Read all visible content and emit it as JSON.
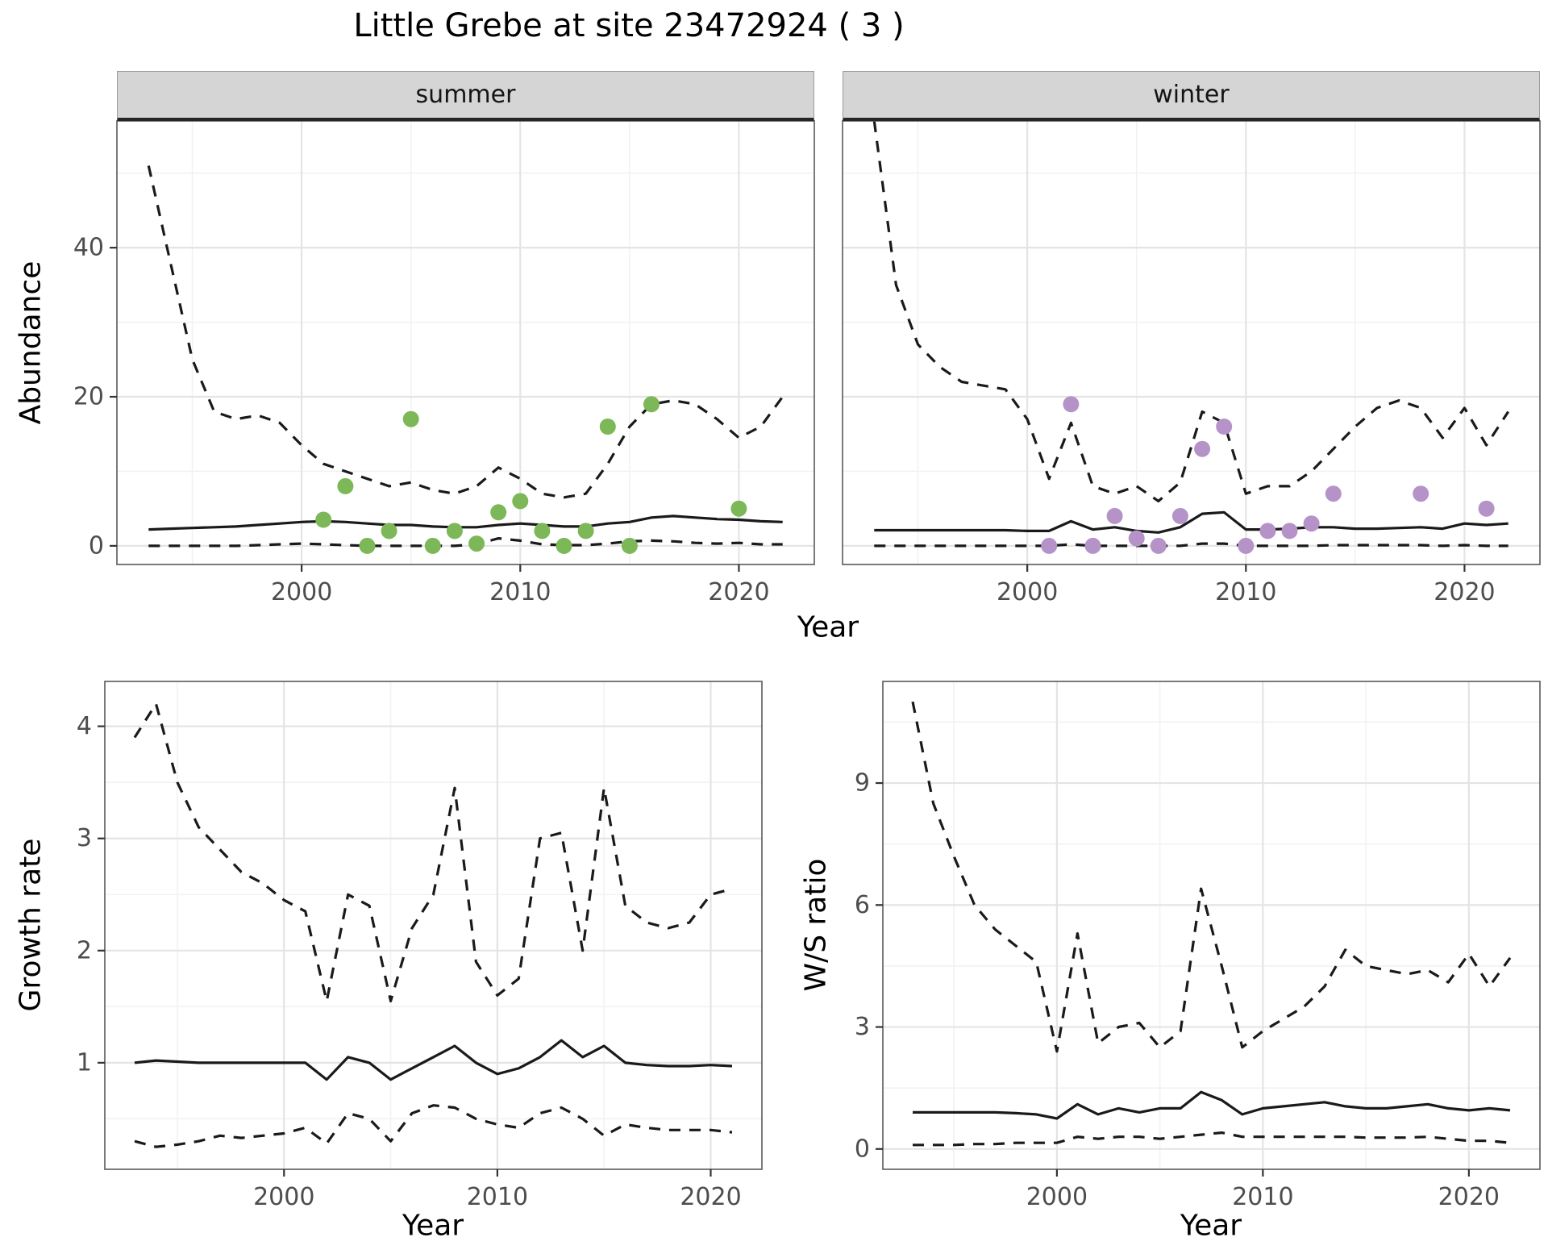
{
  "title": "Little Grebe at site 23472924 ( 3 )",
  "facets": [
    {
      "label": "summer"
    },
    {
      "label": "winter"
    }
  ],
  "axis_labels": {
    "abundance": "Abundance",
    "year": "Year",
    "growth_rate": "Growth rate",
    "ws_ratio": "W/S ratio"
  },
  "colors": {
    "summer_points": "#7cb857",
    "winter_points": "#b593c8",
    "line": "#1a1a1a",
    "strip_bg": "#d5d5d5",
    "grid_major": "#e4e4e4",
    "grid_minor": "#f2f2f2",
    "panel_border": "#595959",
    "tick_text": "#4d4d4d",
    "tick_mark": "#333333"
  },
  "chart_data": [
    {
      "id": "abundance_summer",
      "type": "line",
      "panel": "summer",
      "facet_label": "summer",
      "xlabel": "Year",
      "ylabel": "Abundance",
      "xlim": [
        1991.55,
        2023.45
      ],
      "ylim": [
        -2.5,
        57
      ],
      "xticks": [
        2000,
        2010,
        2020
      ],
      "xminor": [
        1995,
        2005,
        2015
      ],
      "yticks": [
        0,
        20,
        40
      ],
      "yminor": [
        10,
        30,
        50
      ],
      "x": [
        1993,
        1994,
        1995,
        1996,
        1997,
        1998,
        1999,
        2000,
        2001,
        2002,
        2003,
        2004,
        2005,
        2006,
        2007,
        2008,
        2009,
        2010,
        2011,
        2012,
        2013,
        2014,
        2015,
        2016,
        2017,
        2018,
        2019,
        2020,
        2021,
        2022
      ],
      "series": [
        {
          "name": "upper_ci",
          "style": "dashed",
          "y": [
            51,
            38,
            25,
            18,
            17,
            17.5,
            16.5,
            13.5,
            11,
            10,
            9,
            8,
            8.5,
            7.5,
            7,
            8,
            10.5,
            9,
            7,
            6.5,
            7,
            11,
            16,
            19,
            19.5,
            19,
            17,
            14.5,
            16,
            20
          ]
        },
        {
          "name": "median",
          "style": "solid",
          "y": [
            2.2,
            2.3,
            2.4,
            2.5,
            2.6,
            2.8,
            3,
            3.2,
            3.3,
            3.2,
            3,
            2.8,
            2.8,
            2.6,
            2.5,
            2.5,
            2.8,
            3,
            2.8,
            2.6,
            2.6,
            3,
            3.2,
            3.8,
            4,
            3.8,
            3.6,
            3.5,
            3.3,
            3.2
          ]
        },
        {
          "name": "lower_ci",
          "style": "dashed",
          "y": [
            0,
            0,
            0,
            0,
            0,
            0.1,
            0.2,
            0.3,
            0.2,
            0.1,
            0,
            0,
            0,
            0,
            0,
            0.2,
            1,
            0.7,
            0.2,
            0.1,
            0.1,
            0.3,
            0.6,
            0.7,
            0.6,
            0.4,
            0.3,
            0.4,
            0.2,
            0.2
          ]
        }
      ],
      "points": {
        "x": [
          2001,
          2002,
          2003,
          2004,
          2005,
          2006,
          2007,
          2008,
          2009,
          2010,
          2011,
          2012,
          2013,
          2014,
          2015,
          2016,
          2020
        ],
        "y": [
          3.5,
          8,
          0,
          2,
          17,
          0,
          2,
          0.3,
          4.5,
          6,
          2,
          0,
          2,
          16,
          0,
          19,
          5
        ],
        "color": "#7cb857"
      }
    },
    {
      "id": "abundance_winter",
      "type": "line",
      "panel": "winter",
      "facet_label": "winter",
      "xlabel": "Year",
      "ylabel": "Abundance",
      "xlim": [
        1991.55,
        2023.45
      ],
      "ylim": [
        -2.5,
        57
      ],
      "xticks": [
        2000,
        2010,
        2020
      ],
      "xminor": [
        1995,
        2005,
        2015
      ],
      "yticks": [
        0,
        20,
        40
      ],
      "yminor": [
        10,
        30,
        50
      ],
      "x": [
        1993,
        1994,
        1995,
        1996,
        1997,
        1998,
        1999,
        2000,
        2001,
        2002,
        2003,
        2004,
        2005,
        2006,
        2007,
        2008,
        2009,
        2010,
        2011,
        2012,
        2013,
        2014,
        2015,
        2016,
        2017,
        2018,
        2019,
        2020,
        2021,
        2022
      ],
      "series": [
        {
          "name": "upper_ci",
          "style": "dashed",
          "y": [
            57,
            35,
            27,
            24,
            22,
            21.5,
            21,
            17,
            9,
            16.5,
            8,
            7,
            8,
            6,
            8.5,
            18,
            16.5,
            7,
            8,
            8,
            10,
            13,
            16,
            18.5,
            19.5,
            18.5,
            14.5,
            18.5,
            13.5,
            18
          ]
        },
        {
          "name": "median",
          "style": "solid",
          "y": [
            2.1,
            2.1,
            2.1,
            2.1,
            2.1,
            2.1,
            2.1,
            2,
            2,
            3.3,
            2.2,
            2.5,
            2,
            1.8,
            2.5,
            4.3,
            4.5,
            2.2,
            2.2,
            2.3,
            2.5,
            2.5,
            2.3,
            2.3,
            2.4,
            2.5,
            2.3,
            3,
            2.8,
            3
          ]
        },
        {
          "name": "lower_ci",
          "style": "dashed",
          "y": [
            0,
            0,
            0,
            0,
            0,
            0,
            0,
            0,
            0,
            0.2,
            0,
            0,
            0,
            0,
            0,
            0.3,
            0.3,
            0,
            0,
            0,
            0,
            0.1,
            0.1,
            0.1,
            0.1,
            0.1,
            0,
            0.1,
            0,
            0
          ]
        }
      ],
      "points": {
        "x": [
          2001,
          2002,
          2003,
          2004,
          2005,
          2006,
          2007,
          2008,
          2009,
          2010,
          2011,
          2012,
          2013,
          2014,
          2018,
          2021
        ],
        "y": [
          0,
          19,
          0,
          4,
          1,
          0,
          4,
          13,
          16,
          0,
          2,
          2,
          3,
          7,
          7,
          5
        ],
        "color": "#b593c8"
      }
    },
    {
      "id": "growth_rate",
      "type": "line",
      "panel": "growth",
      "xlabel": "Year",
      "ylabel": "Growth rate",
      "xlim": [
        1991.6,
        2022.4
      ],
      "ylim": [
        0.05,
        4.4
      ],
      "xticks": [
        2000,
        2010,
        2020
      ],
      "xminor": [
        1995,
        2005,
        2015
      ],
      "yticks": [
        1,
        2,
        3,
        4
      ],
      "yminor": [
        0.5,
        1.5,
        2.5,
        3.5
      ],
      "x": [
        1993,
        1994,
        1995,
        1996,
        1997,
        1998,
        1999,
        2000,
        2001,
        2002,
        2003,
        2004,
        2005,
        2006,
        2007,
        2008,
        2009,
        2010,
        2011,
        2012,
        2013,
        2014,
        2015,
        2016,
        2017,
        2018,
        2019,
        2020,
        2021
      ],
      "series": [
        {
          "name": "upper_ci",
          "style": "dashed",
          "y": [
            3.9,
            4.2,
            3.5,
            3.1,
            2.9,
            2.7,
            2.6,
            2.45,
            2.35,
            1.55,
            2.5,
            2.4,
            1.55,
            2.2,
            2.5,
            3.45,
            1.9,
            1.6,
            1.75,
            3,
            3.05,
            2,
            3.45,
            2.4,
            2.25,
            2.2,
            2.25,
            2.5,
            2.55
          ]
        },
        {
          "name": "median",
          "style": "solid",
          "y": [
            1,
            1.02,
            1.01,
            1,
            1,
            1,
            1,
            1,
            1,
            0.85,
            1.05,
            1,
            0.85,
            0.95,
            1.05,
            1.15,
            1,
            0.9,
            0.95,
            1.05,
            1.2,
            1.05,
            1.15,
            1,
            0.98,
            0.97,
            0.97,
            0.98,
            0.97
          ]
        },
        {
          "name": "lower_ci",
          "style": "dashed",
          "y": [
            0.3,
            0.25,
            0.27,
            0.3,
            0.35,
            0.33,
            0.35,
            0.37,
            0.42,
            0.28,
            0.55,
            0.5,
            0.3,
            0.55,
            0.62,
            0.6,
            0.5,
            0.45,
            0.42,
            0.55,
            0.6,
            0.5,
            0.35,
            0.45,
            0.42,
            0.4,
            0.4,
            0.4,
            0.38
          ]
        }
      ]
    },
    {
      "id": "ws_ratio",
      "type": "line",
      "panel": "ws",
      "xlabel": "Year",
      "ylabel": "W/S ratio",
      "xlim": [
        1991.55,
        2023.45
      ],
      "ylim": [
        -0.5,
        11.5
      ],
      "xticks": [
        2000,
        2010,
        2020
      ],
      "xminor": [
        1995,
        2005,
        2015
      ],
      "yticks": [
        0,
        3,
        6,
        9
      ],
      "yminor": [
        1.5,
        4.5,
        7.5,
        10.5
      ],
      "x": [
        1993,
        1994,
        1995,
        1996,
        1997,
        1998,
        1999,
        2000,
        2001,
        2002,
        2003,
        2004,
        2005,
        2006,
        2007,
        2008,
        2009,
        2010,
        2011,
        2012,
        2013,
        2014,
        2015,
        2016,
        2017,
        2018,
        2019,
        2020,
        2021,
        2022
      ],
      "series": [
        {
          "name": "upper_ci",
          "style": "dashed",
          "y": [
            11,
            8.5,
            7.2,
            6,
            5.4,
            5,
            4.6,
            2.4,
            5.3,
            2.6,
            3,
            3.1,
            2.5,
            2.9,
            6.4,
            4.5,
            2.5,
            2.9,
            3.2,
            3.5,
            4,
            4.9,
            4.5,
            4.4,
            4.3,
            4.4,
            4.1,
            4.8,
            4,
            4.7
          ]
        },
        {
          "name": "median",
          "style": "solid",
          "y": [
            0.9,
            0.9,
            0.9,
            0.9,
            0.9,
            0.88,
            0.85,
            0.75,
            1.1,
            0.85,
            1,
            0.9,
            1,
            1,
            1.4,
            1.2,
            0.85,
            1,
            1.05,
            1.1,
            1.15,
            1.05,
            1,
            1,
            1.05,
            1.1,
            1,
            0.95,
            1,
            0.95
          ]
        },
        {
          "name": "lower_ci",
          "style": "dashed",
          "y": [
            0.1,
            0.1,
            0.1,
            0.12,
            0.12,
            0.15,
            0.15,
            0.15,
            0.3,
            0.25,
            0.3,
            0.3,
            0.25,
            0.3,
            0.35,
            0.4,
            0.3,
            0.3,
            0.3,
            0.3,
            0.3,
            0.3,
            0.28,
            0.28,
            0.28,
            0.3,
            0.25,
            0.2,
            0.2,
            0.15
          ]
        }
      ]
    }
  ]
}
